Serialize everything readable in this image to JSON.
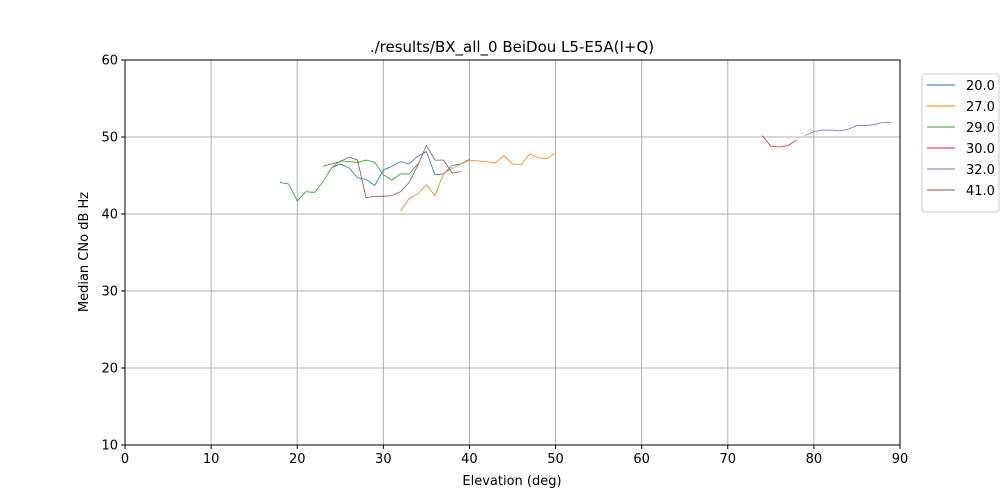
{
  "chart_data": {
    "type": "line",
    "title": "./results/BX_all_0 BeiDou L5-E5A(I+Q)",
    "xlabel": "Elevation (deg)",
    "ylabel": "Median CNo dB Hz",
    "xlim": [
      0,
      90
    ],
    "ylim": [
      10,
      60
    ],
    "xticks": [
      0,
      10,
      20,
      30,
      40,
      50,
      60,
      70,
      80,
      90
    ],
    "yticks": [
      10,
      20,
      30,
      40,
      50,
      60
    ],
    "grid": true,
    "legend_placement": "outside-top-right",
    "series": [
      {
        "name": "20.0",
        "color": "#1f77b4",
        "x": [
          24,
          25,
          26,
          27,
          28,
          29,
          30,
          31,
          32,
          33,
          34,
          35,
          36,
          37,
          38,
          39,
          40
        ],
        "y": [
          46.0,
          46.5,
          46.0,
          44.7,
          44.5,
          43.7,
          45.7,
          46.2,
          46.8,
          46.5,
          47.5,
          48.1,
          45.1,
          45.2,
          46.3,
          46.5,
          47.1
        ]
      },
      {
        "name": "27.0",
        "color": "#ff7f0e",
        "x": [
          32,
          33,
          34,
          35,
          36,
          37,
          38,
          39,
          40,
          41,
          42,
          43,
          44,
          45,
          46,
          47,
          48,
          49,
          50
        ],
        "y": [
          40.4,
          42.0,
          42.6,
          43.8,
          42.4,
          45.3,
          45.9,
          46.5,
          47.0,
          46.9,
          46.8,
          46.6,
          47.6,
          46.5,
          46.4,
          47.8,
          47.3,
          47.2,
          47.9
        ]
      },
      {
        "name": "29.0",
        "color": "#2ca02c",
        "x": [
          18,
          19,
          20,
          21,
          22,
          23,
          24,
          25,
          26,
          27,
          28,
          29,
          30,
          31,
          32,
          33,
          34
        ],
        "y": [
          44.1,
          43.9,
          41.7,
          42.9,
          42.8,
          44.2,
          46.0,
          46.9,
          46.8,
          46.7,
          47.0,
          46.7,
          45.1,
          44.4,
          45.2,
          45.2,
          46.5
        ]
      },
      {
        "name": "30.0",
        "color": "#d62728",
        "x": [
          74,
          75,
          76,
          77,
          78
        ],
        "y": [
          50.2,
          48.8,
          48.7,
          48.9,
          49.6
        ]
      },
      {
        "name": "32.0",
        "color": "#9467bd",
        "x": [
          79,
          80,
          81,
          82,
          83,
          84,
          85,
          86,
          87,
          88,
          89
        ],
        "y": [
          50.2,
          50.7,
          50.9,
          50.9,
          50.8,
          51.0,
          51.5,
          51.5,
          51.6,
          51.9,
          51.9
        ]
      },
      {
        "name": "41.0",
        "color": "#8c564b",
        "x": [
          23,
          24,
          25,
          26,
          27,
          28,
          29,
          30,
          31,
          32,
          33,
          34,
          35,
          36,
          37,
          38,
          39
        ],
        "y": [
          46.2,
          46.5,
          46.8,
          47.4,
          47.0,
          42.1,
          42.3,
          42.3,
          42.4,
          42.9,
          44.1,
          46.3,
          48.9,
          47.0,
          47.0,
          45.3,
          45.5
        ]
      }
    ]
  }
}
